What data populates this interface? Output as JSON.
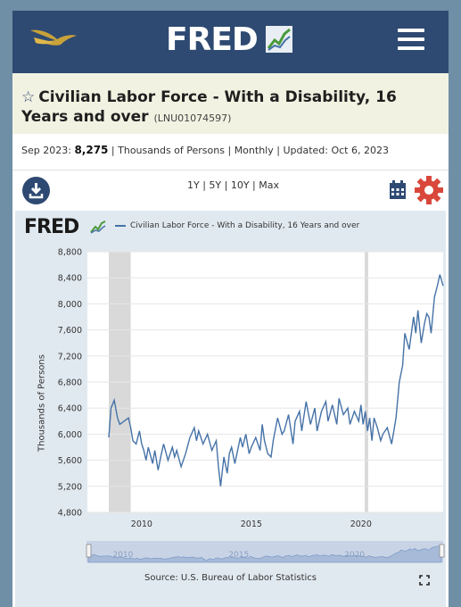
{
  "header": {
    "logo_text": "FRED",
    "menu_icon": "hamburger-icon"
  },
  "series": {
    "title": "Civilian Labor Force - With a Disability, 16 Years and over",
    "id": "(LNU01074597)",
    "date_label": "Sep 2023:",
    "value": "8,275",
    "units": "Thousands of Persons",
    "frequency": "Monthly",
    "updated": "Updated: Oct 6, 2023",
    "sep": "|"
  },
  "controls": {
    "ranges": [
      "1Y",
      "5Y",
      "10Y",
      "Max"
    ]
  },
  "chart": {
    "logo_text": "FRED",
    "legend": "Civilian Labor Force - With a Disability, 16 Years and over",
    "ylabel": "Thousands of Persons",
    "source": "Source: U.S. Bureau of Labor Statistics",
    "navigator_labels": [
      "2010",
      "2015",
      "2020"
    ]
  },
  "colors": {
    "header": "#2e4a72",
    "series": "#4572a7",
    "title_bg": "#f2f2e2",
    "chart_bg": "#e1e9f0",
    "recession": "#d9d9d9",
    "gear": "#d9473b"
  },
  "chart_data": {
    "type": "line",
    "title": "",
    "xlabel": "",
    "ylabel": "Thousands of Persons",
    "ylim": [
      4800,
      8800
    ],
    "yticks": [
      4800,
      5200,
      5600,
      6000,
      6400,
      6800,
      7200,
      7600,
      8000,
      8400,
      8800
    ],
    "ytick_labels": [
      "4,800",
      "5,200",
      "5,600",
      "6,000",
      "6,400",
      "6,800",
      "7,200",
      "7,600",
      "8,000",
      "8,400",
      "8,800"
    ],
    "xlim": [
      2008.5,
      2023.75
    ],
    "xticks": [
      2010,
      2015,
      2020
    ],
    "recessions": [
      [
        2008.5,
        2009.5
      ],
      [
        2020.17,
        2020.33
      ]
    ],
    "series": [
      {
        "name": "Civilian Labor Force - With a Disability, 16 Years and over",
        "x": [
          2008.5,
          2008.6,
          2008.75,
          2008.9,
          2009.0,
          2009.2,
          2009.4,
          2009.5,
          2009.6,
          2009.75,
          2009.9,
          2010.0,
          2010.1,
          2010.2,
          2010.3,
          2010.5,
          2010.6,
          2010.75,
          2010.9,
          2011.0,
          2011.2,
          2011.4,
          2011.5,
          2011.6,
          2011.8,
          2012.0,
          2012.2,
          2012.4,
          2012.5,
          2012.6,
          2012.8,
          2013.0,
          2013.2,
          2013.4,
          2013.5,
          2013.6,
          2013.75,
          2013.9,
          2014.0,
          2014.1,
          2014.25,
          2014.5,
          2014.6,
          2014.75,
          2014.9,
          2015.0,
          2015.2,
          2015.4,
          2015.5,
          2015.6,
          2015.75,
          2015.9,
          2016.0,
          2016.2,
          2016.4,
          2016.5,
          2016.7,
          2016.9,
          2017.0,
          2017.2,
          2017.3,
          2017.5,
          2017.7,
          2017.9,
          2018.0,
          2018.2,
          2018.4,
          2018.5,
          2018.7,
          2018.9,
          2019.0,
          2019.2,
          2019.4,
          2019.5,
          2019.7,
          2019.9,
          2020.0,
          2020.1,
          2020.2,
          2020.3,
          2020.4,
          2020.5,
          2020.6,
          2020.75,
          2020.9,
          2021.0,
          2021.2,
          2021.4,
          2021.5,
          2021.6,
          2021.75,
          2021.9,
          2022.0,
          2022.2,
          2022.4,
          2022.5,
          2022.6,
          2022.75,
          2022.9,
          2023.0,
          2023.1,
          2023.2,
          2023.35,
          2023.5,
          2023.6,
          2023.75
        ],
        "values": [
          5950,
          6400,
          6520,
          6250,
          6150,
          6200,
          6250,
          6100,
          5900,
          5850,
          6050,
          5850,
          5750,
          5600,
          5800,
          5550,
          5750,
          5450,
          5700,
          5850,
          5600,
          5800,
          5650,
          5750,
          5500,
          5700,
          5950,
          6100,
          5900,
          6050,
          5850,
          6000,
          5750,
          5900,
          5500,
          5200,
          5650,
          5400,
          5700,
          5800,
          5550,
          5950,
          5800,
          6000,
          5700,
          5800,
          5950,
          5750,
          6150,
          5900,
          5700,
          5650,
          5900,
          6250,
          6000,
          6050,
          6300,
          5850,
          6200,
          6350,
          6050,
          6500,
          6150,
          6400,
          6050,
          6350,
          6500,
          6200,
          6450,
          6150,
          6550,
          6300,
          6400,
          6150,
          6350,
          6200,
          6450,
          6150,
          6350,
          6050,
          6250,
          5900,
          6250,
          6100,
          5900,
          6000,
          6100,
          5850,
          6050,
          6250,
          6800,
          7050,
          7550,
          7300,
          7800,
          7550,
          7900,
          7400,
          7700,
          7850,
          7800,
          7550,
          8100,
          8300,
          8450,
          8275
        ]
      }
    ]
  }
}
